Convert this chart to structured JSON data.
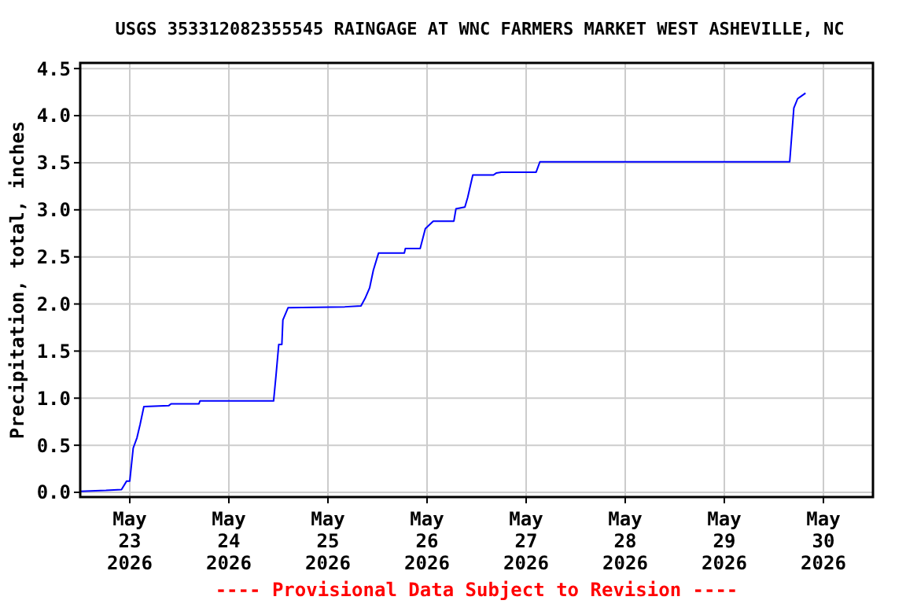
{
  "chart_data": {
    "type": "line",
    "title": "USGS 353312082355545 RAINGAGE AT WNC FARMERS MARKET WEST ASHEVILLE, NC",
    "ylabel": "Precipitation, total, inches",
    "annotations": [
      "---- Provisional Data Subject to Revision ----"
    ],
    "xlim": [
      "2026-05-22T12:00",
      "2026-05-30T12:00"
    ],
    "xticks": [
      {
        "value": "2026-05-23T00:00",
        "label": "May\n23\n2026"
      },
      {
        "value": "2026-05-24T00:00",
        "label": "May\n24\n2026"
      },
      {
        "value": "2026-05-25T00:00",
        "label": "May\n25\n2026"
      },
      {
        "value": "2026-05-26T00:00",
        "label": "May\n26\n2026"
      },
      {
        "value": "2026-05-27T00:00",
        "label": "May\n27\n2026"
      },
      {
        "value": "2026-05-28T00:00",
        "label": "May\n28\n2026"
      },
      {
        "value": "2026-05-29T00:00",
        "label": "May\n29\n2026"
      },
      {
        "value": "2026-05-30T00:00",
        "label": "May\n30\n2026"
      }
    ],
    "ylim": [
      -0.05,
      4.56
    ],
    "yticks": [
      {
        "value": 0,
        "label": "0.0"
      },
      {
        "value": 0.5,
        "label": "0.5"
      },
      {
        "value": 1,
        "label": "1.0"
      },
      {
        "value": 1.5,
        "label": "1.5"
      },
      {
        "value": 2,
        "label": "2.0"
      },
      {
        "value": 2.5,
        "label": "2.5"
      },
      {
        "value": 3,
        "label": "3.0"
      },
      {
        "value": 3.5,
        "label": "3.5"
      },
      {
        "value": 4,
        "label": "4.0"
      },
      {
        "value": 4.5,
        "label": "4.5"
      }
    ],
    "grid": true,
    "marker": "none",
    "line_style": "solid",
    "series": [
      {
        "color": "#0000ff",
        "x": [
          "2026-05-22T12:00",
          "2026-05-22T18:15",
          "2026-05-22T22:00",
          "2026-05-22T23:15",
          "2026-05-23T00:00",
          "2026-05-23T00:50",
          "2026-05-23T01:45",
          "2026-05-23T02:30",
          "2026-05-23T03:25",
          "2026-05-23T09:25",
          "2026-05-23T10:00",
          "2026-05-23T16:45",
          "2026-05-23T17:00",
          "2026-05-24T10:50",
          "2026-05-24T11:25",
          "2026-05-24T12:05",
          "2026-05-24T12:50",
          "2026-05-24T13:05",
          "2026-05-24T14:20",
          "2026-05-25T04:05",
          "2026-05-25T08:00",
          "2026-05-25T09:00",
          "2026-05-25T10:05",
          "2026-05-25T11:00",
          "2026-05-25T12:15",
          "2026-05-25T18:30",
          "2026-05-25T18:45",
          "2026-05-25T22:20",
          "2026-05-25T23:35",
          "2026-05-26T01:30",
          "2026-05-26T06:30",
          "2026-05-26T07:00",
          "2026-05-26T09:10",
          "2026-05-26T09:50",
          "2026-05-26T11:05",
          "2026-05-26T16:05",
          "2026-05-26T16:45",
          "2026-05-26T18:00",
          "2026-05-27T02:25",
          "2026-05-27T03:20",
          "2026-05-29T15:50",
          "2026-05-29T16:50",
          "2026-05-29T17:45",
          "2026-05-29T19:40"
        ],
        "values": [
          0.01,
          0.02,
          0.03,
          0.12,
          0.12,
          0.47,
          0.58,
          0.72,
          0.91,
          0.92,
          0.94,
          0.94,
          0.97,
          0.97,
          1.24,
          1.57,
          1.57,
          1.83,
          1.96,
          1.97,
          1.98,
          2.06,
          2.17,
          2.36,
          2.54,
          2.54,
          2.59,
          2.59,
          2.8,
          2.88,
          2.88,
          3.01,
          3.03,
          3.13,
          3.37,
          3.37,
          3.39,
          3.4,
          3.4,
          3.51,
          3.51,
          4.08,
          4.18,
          4.24
        ]
      }
    ]
  }
}
